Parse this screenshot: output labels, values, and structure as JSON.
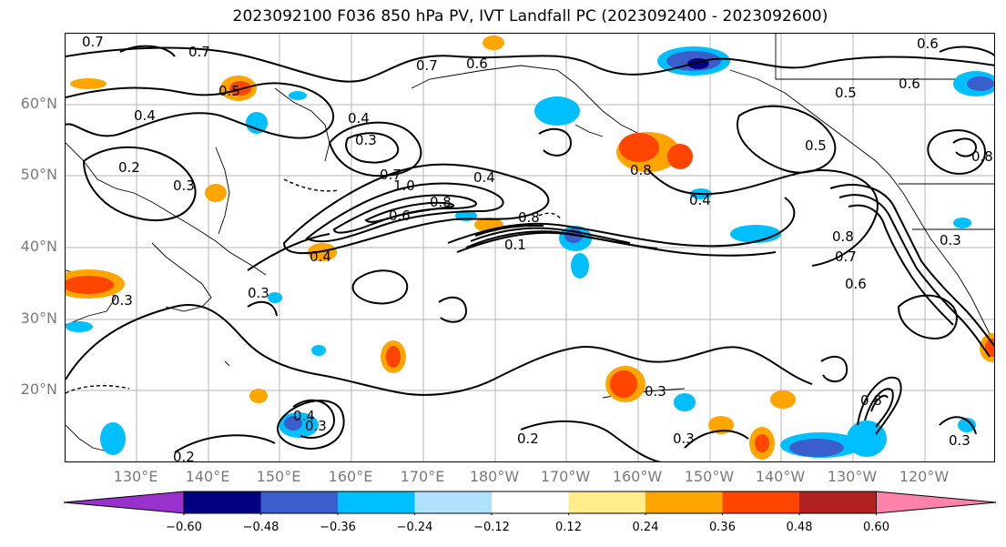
{
  "title": "2023092100 F036 850 hPa PV, IVT Landfall PC (2023092400 - 2023092600)",
  "lat_labels": [
    "60°N",
    "50°N",
    "40°N",
    "30°N",
    "20°N"
  ],
  "lon_labels": [
    "130°E",
    "140°E",
    "150°E",
    "160°E",
    "170°E",
    "180°W",
    "170°W",
    "160°W",
    "150°W",
    "140°W",
    "130°W",
    "120°W"
  ],
  "contour_labels": [
    "0.7",
    "0.7",
    "0.6",
    "0.7",
    "0.6",
    "0.5",
    "0.4",
    "0.4",
    "0.3",
    "0.2",
    "0.3",
    "0.7",
    "1.0",
    "0.6",
    "0.8",
    "0.4",
    "0.8",
    "0.1",
    "0.4",
    "0.3",
    "0.3",
    "0.5",
    "0.4",
    "0.8",
    "0.7",
    "0.6",
    "0.3",
    "0.8",
    "0.4",
    "0.3",
    "0.2",
    "0.2",
    "0.3",
    "0.3",
    "0.8",
    "0.3",
    "0.6",
    "0.5",
    "0.8"
  ],
  "colorbar": {
    "ticks": [
      "−0.60",
      "−0.48",
      "−0.36",
      "−0.24",
      "−0.12",
      "0.12",
      "0.24",
      "0.36",
      "0.48",
      "0.60"
    ],
    "colors": [
      "#9932cc",
      "#000080",
      "#3a5fcd",
      "#00bfff",
      "#b0e2ff",
      "#ffffff",
      "#ffec8b",
      "#ffa500",
      "#ff4500",
      "#b22222",
      "#ff82ab"
    ]
  },
  "positive_anomaly_color": "#ff4500",
  "negative_anomaly_color": "#00bfff"
}
